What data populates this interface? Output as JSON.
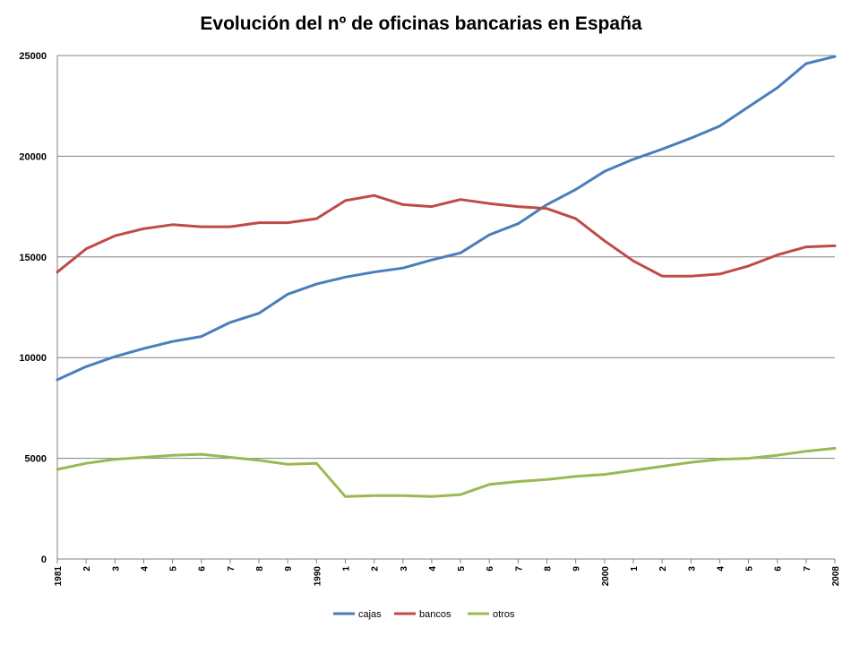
{
  "chart_data": {
    "type": "line",
    "title": "Evolución del nº de oficinas bancarias en España",
    "xlabel": "",
    "ylabel": "",
    "ylim": [
      0,
      25000
    ],
    "yticks": [
      0,
      5000,
      10000,
      15000,
      20000,
      25000
    ],
    "ytick_labels": [
      "0",
      "5000",
      "10000",
      "15000",
      "20000",
      "25000"
    ],
    "categories": [
      "1981",
      "2",
      "3",
      "4",
      "5",
      "6",
      "7",
      "8",
      "9",
      "1990",
      "1",
      "2",
      "3",
      "4",
      "5",
      "6",
      "7",
      "8",
      "9",
      "2000",
      "1",
      "2",
      "3",
      "4",
      "5",
      "6",
      "7",
      "2008"
    ],
    "grid": true,
    "legend_position": "bottom",
    "series": [
      {
        "name": "cajas",
        "color": "#4a7ebb",
        "values": [
          8900,
          9550,
          10050,
          10450,
          10800,
          11050,
          11750,
          12200,
          13150,
          13650,
          14000,
          14250,
          14450,
          14850,
          15200,
          16100,
          16650,
          17600,
          18350,
          19250,
          19850,
          20350,
          20900,
          21500,
          22450,
          23400,
          24600,
          24950
        ]
      },
      {
        "name": "bancos",
        "color": "#be4b48",
        "values": [
          14250,
          15400,
          16050,
          16400,
          16600,
          16500,
          16500,
          16700,
          16700,
          16900,
          17800,
          18050,
          17600,
          17500,
          17850,
          17650,
          17500,
          17400,
          16900,
          15800,
          14800,
          14050,
          14050,
          14150,
          14550,
          15100,
          15500,
          15550
        ]
      },
      {
        "name": "otros",
        "color": "#98b954",
        "values": [
          4450,
          4750,
          4950,
          5050,
          5150,
          5200,
          5050,
          4900,
          4700,
          4750,
          3100,
          3150,
          3150,
          3100,
          3200,
          3700,
          3850,
          3950,
          4100,
          4200,
          4400,
          4600,
          4800,
          4950,
          5000,
          5150,
          5350,
          5500
        ]
      }
    ]
  }
}
